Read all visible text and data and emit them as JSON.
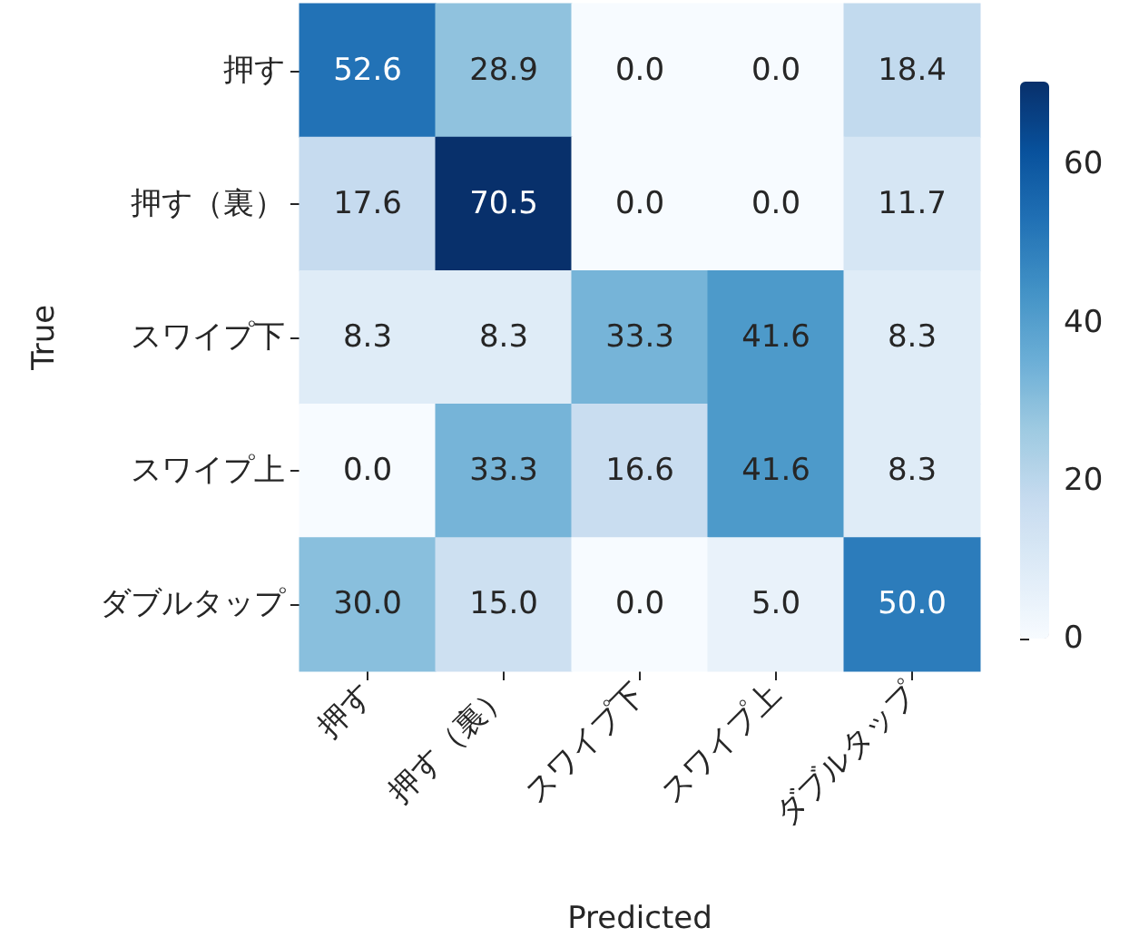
{
  "chart_data": {
    "type": "heatmap",
    "xlabel": "Predicted",
    "ylabel": "True",
    "categories": [
      "押す",
      "押す（裏）",
      "スワイプ下",
      "スワイプ上",
      "ダブルタップ"
    ],
    "y_categories": [
      "押す",
      "押す（裏）",
      "スワイプ下",
      "スワイプ上",
      "ダブルタップ"
    ],
    "cells": [
      [
        52.6,
        28.9,
        0.0,
        0.0,
        18.4
      ],
      [
        17.6,
        70.5,
        0.0,
        0.0,
        11.7
      ],
      [
        8.3,
        8.3,
        33.3,
        41.6,
        8.3
      ],
      [
        0.0,
        33.3,
        16.6,
        41.6,
        8.3
      ],
      [
        30.0,
        15.0,
        0.0,
        5.0,
        50.0
      ]
    ],
    "cell_labels": [
      [
        "52.6",
        "28.9",
        "0.0",
        "0.0",
        "18.4"
      ],
      [
        "17.6",
        "70.5",
        "0.0",
        "0.0",
        "11.7"
      ],
      [
        "8.3",
        "8.3",
        "33.3",
        "41.6",
        "8.3"
      ],
      [
        "0.0",
        "33.3",
        "16.6",
        "41.6",
        "8.3"
      ],
      [
        "30.0",
        "15.0",
        "0.0",
        "5.0",
        "50.0"
      ]
    ],
    "clim": [
      0,
      70.5
    ],
    "cticks": [
      0,
      20,
      40,
      60
    ]
  }
}
